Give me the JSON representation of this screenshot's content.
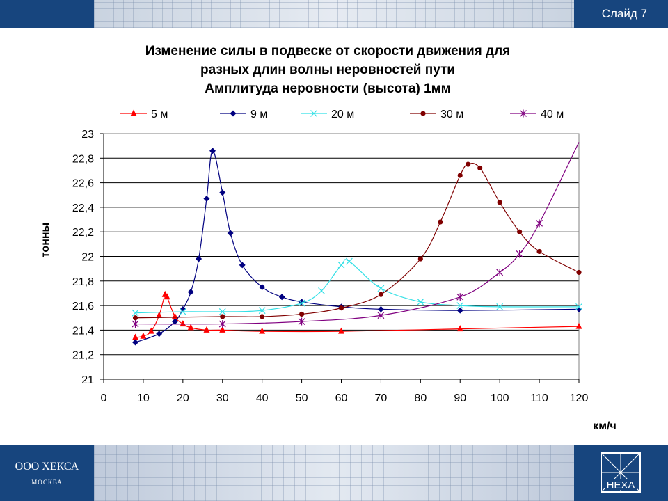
{
  "header": {
    "slide_label": "Слайд 7"
  },
  "footer": {
    "company": "ООО ХЕКСА",
    "city": "МОСКВА",
    "logo_text": "НЕХА"
  },
  "colors": {
    "banner": "#17457e",
    "5m": "#ff0000",
    "9m": "#000080",
    "20m": "#33e0e6",
    "30m": "#800000",
    "40m": "#800080"
  },
  "chart_data": {
    "type": "line",
    "title": [
      "Изменение силы  в подвеске от скорости движения для",
      "разных длин волны неровностей пути",
      "Амплитуда неровности (высота) 1мм"
    ],
    "xlabel": "км/ч",
    "ylabel": "тонны",
    "xlim": [
      0,
      120
    ],
    "ylim": [
      21,
      23
    ],
    "x_ticks": [
      0,
      10,
      20,
      30,
      40,
      50,
      60,
      70,
      80,
      90,
      100,
      110,
      120
    ],
    "y_ticks": [
      "21",
      "21,2",
      "21,4",
      "21,6",
      "21,8",
      "22",
      "22,2",
      "22,4",
      "22,6",
      "22,8",
      "23"
    ],
    "grid": "horizontal",
    "legend_position": "top",
    "series": [
      {
        "name": "5 м",
        "color": "#ff0000",
        "marker": "triangle",
        "markers": true,
        "points": [
          [
            8,
            21.34
          ],
          [
            10,
            21.35
          ],
          [
            12,
            21.39
          ],
          [
            14,
            21.52
          ],
          [
            15.5,
            21.69
          ],
          [
            16,
            21.67
          ],
          [
            18,
            21.51
          ],
          [
            20,
            21.45
          ],
          [
            22,
            21.42
          ],
          [
            26,
            21.4
          ],
          [
            30,
            21.4
          ],
          [
            40,
            21.39
          ],
          [
            60,
            21.39
          ],
          [
            90,
            21.41
          ],
          [
            120,
            21.43
          ]
        ]
      },
      {
        "name": "9 м",
        "color": "#000080",
        "marker": "diamond",
        "markers": true,
        "points": [
          [
            8,
            21.3
          ],
          [
            14,
            21.37
          ],
          [
            18,
            21.47
          ],
          [
            20,
            21.57
          ],
          [
            22,
            21.71
          ],
          [
            24,
            21.98
          ],
          [
            26,
            22.47
          ],
          [
            27.5,
            22.86
          ],
          [
            30,
            22.52
          ],
          [
            32,
            22.19
          ],
          [
            35,
            21.93
          ],
          [
            40,
            21.75
          ],
          [
            45,
            21.67
          ],
          [
            50,
            21.63
          ],
          [
            60,
            21.59
          ],
          [
            70,
            21.57
          ],
          [
            90,
            21.56
          ],
          [
            120,
            21.57
          ]
        ]
      },
      {
        "name": "20 м",
        "color": "#33e0e6",
        "marker": "x",
        "markers": true,
        "points": [
          [
            8,
            21.54
          ],
          [
            20,
            21.55
          ],
          [
            30,
            21.55
          ],
          [
            40,
            21.56
          ],
          [
            50,
            21.62
          ],
          [
            55,
            21.72
          ],
          [
            60,
            21.93
          ],
          [
            62,
            21.96
          ],
          [
            70,
            21.74
          ],
          [
            80,
            21.63
          ],
          [
            90,
            21.6
          ],
          [
            100,
            21.59
          ],
          [
            120,
            21.59
          ]
        ]
      },
      {
        "name": "30 м",
        "color": "#800000",
        "marker": "circle",
        "markers": true,
        "points": [
          [
            8,
            21.5
          ],
          [
            30,
            21.51
          ],
          [
            40,
            21.51
          ],
          [
            50,
            21.53
          ],
          [
            60,
            21.58
          ],
          [
            70,
            21.69
          ],
          [
            80,
            21.98
          ],
          [
            85,
            22.28
          ],
          [
            90,
            22.66
          ],
          [
            92,
            22.75
          ],
          [
            95,
            22.72
          ],
          [
            100,
            22.44
          ],
          [
            105,
            22.2
          ],
          [
            110,
            22.04
          ],
          [
            120,
            21.87
          ]
        ]
      },
      {
        "name": "40 м",
        "color": "#800080",
        "marker": "star",
        "markers": true,
        "points": [
          [
            8,
            21.45
          ],
          [
            30,
            21.45
          ],
          [
            50,
            21.47
          ],
          [
            70,
            21.52
          ],
          [
            90,
            21.67
          ],
          [
            100,
            21.87
          ],
          [
            105,
            22.02
          ],
          [
            110,
            22.27
          ],
          [
            120,
            22.93
          ]
        ],
        "marker_x": [
          8,
          30,
          50,
          70,
          90,
          100,
          105,
          110
        ]
      }
    ]
  }
}
